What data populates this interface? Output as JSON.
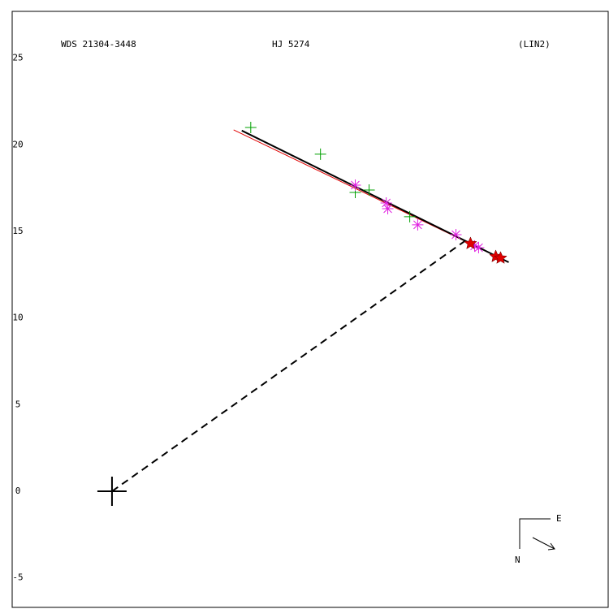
{
  "chart_data": {
    "type": "scatter",
    "title_left": "WDS 21304-3448",
    "title_center": "HJ 5274",
    "title_right": "(LIN2)",
    "compass_east": "E",
    "compass_north": "N",
    "xlim": [
      -5.77,
      28.68
    ],
    "ylim": [
      -6.7,
      27.7
    ],
    "yticks": [
      -5,
      0,
      5,
      10,
      15,
      20,
      25
    ],
    "primary": {
      "x": 0,
      "y": 0,
      "color": "#000000"
    },
    "series": [
      {
        "marker": "plus",
        "color": "#00a000",
        "x": [
          8.02,
          12.05,
          14.06,
          14.86,
          17.21
        ],
        "y": [
          21.0,
          19.46,
          17.25,
          17.39,
          15.85
        ]
      },
      {
        "marker": "asterisk",
        "color": "#e020e0",
        "x": [
          14.06,
          15.85,
          15.94,
          17.67,
          19.88,
          20.96,
          21.19
        ],
        "y": [
          17.67,
          16.64,
          16.31,
          15.38,
          14.81,
          14.16,
          14.06
        ]
      },
      {
        "marker": "star",
        "color": "#e00000",
        "x": [
          20.72,
          22.18,
          22.46
        ],
        "y": [
          14.3,
          13.55,
          13.46
        ]
      }
    ],
    "lines": [
      {
        "color": "#e00000",
        "width": 1,
        "dashed": false,
        "x": [
          7.03,
          22.83
        ],
        "y": [
          20.86,
          13.27
        ]
      },
      {
        "color": "#000000",
        "width": 2,
        "dashed": false,
        "x": [
          7.5,
          22.93
        ],
        "y": [
          20.82,
          13.22
        ]
      },
      {
        "color": "#000000",
        "width": 2,
        "dashed": true,
        "x": [
          0,
          20.39
        ],
        "y": [
          0,
          14.44
        ]
      }
    ]
  }
}
